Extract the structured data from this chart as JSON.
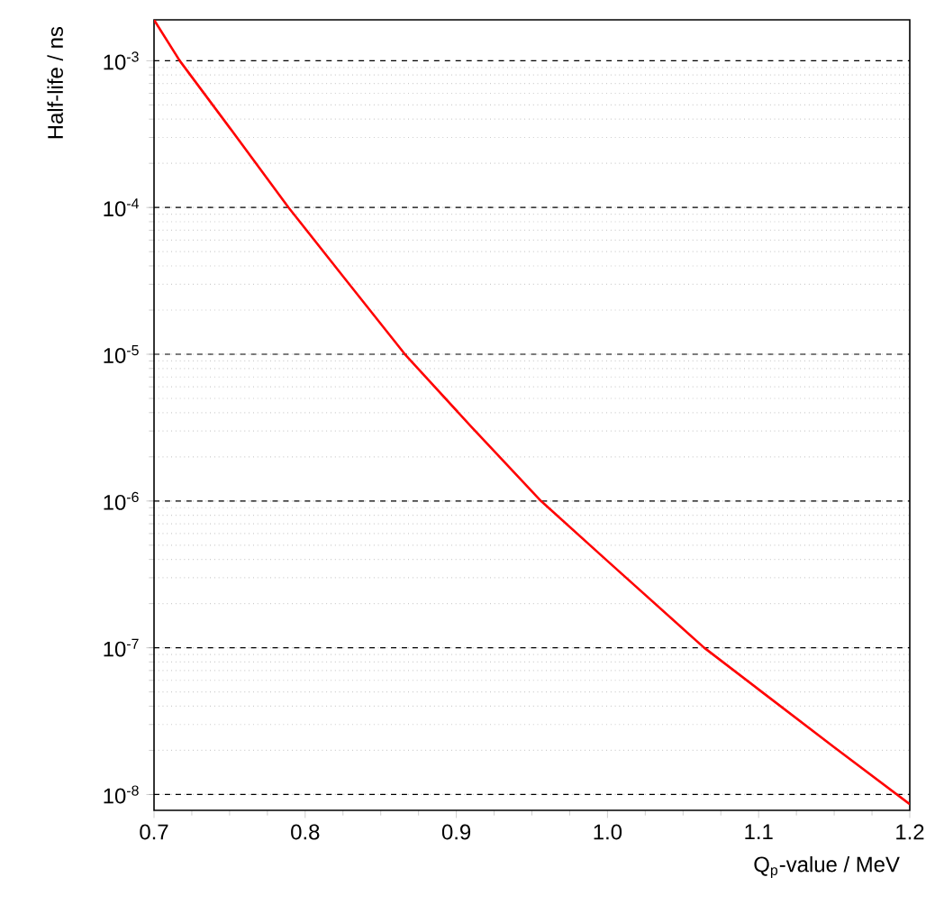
{
  "chart_data": {
    "type": "line",
    "xlabel": "Q$_{p}$-value / MeV",
    "ylabel": "Half-life / ns",
    "log": "y",
    "grid": "y",
    "xlim": [
      0.7,
      1.2
    ],
    "ylim": [
      7.8e-09,
      0.0019
    ],
    "xticks": [
      {
        "value": 0.7,
        "label": "0.7"
      },
      {
        "value": 0.8,
        "label": "0.8"
      },
      {
        "value": 0.9,
        "label": "0.9"
      },
      {
        "value": 1.0,
        "label": "1.0"
      },
      {
        "value": 1.1,
        "label": "1.1"
      },
      {
        "value": 1.2,
        "label": "1.2"
      }
    ],
    "yticks": [
      {
        "value": 1e-08,
        "label": "10$^{-8}$"
      },
      {
        "value": 1e-07,
        "label": "10$^{-7}$"
      },
      {
        "value": 1e-06,
        "label": "10$^{-6}$"
      },
      {
        "value": 1e-05,
        "label": "10$^{-5}$"
      },
      {
        "value": 0.0001,
        "label": "10$^{-4}$"
      },
      {
        "value": 0.001,
        "label": "10$^{-3}$"
      }
    ],
    "x": [
      0.7,
      0.717,
      0.75,
      0.789,
      0.825,
      0.866,
      0.91,
      0.956,
      1.0,
      1.064,
      1.1,
      1.15,
      1.2
    ],
    "series": [
      {
        "color": "#ff0000",
        "values": [
          0.0019,
          0.001,
          0.00035,
          0.0001,
          3.4e-05,
          1e-05,
          3.2e-06,
          1e-06,
          3.9e-07,
          1e-07,
          5.2e-08,
          2.1e-08,
          8.6e-09
        ]
      }
    ]
  }
}
